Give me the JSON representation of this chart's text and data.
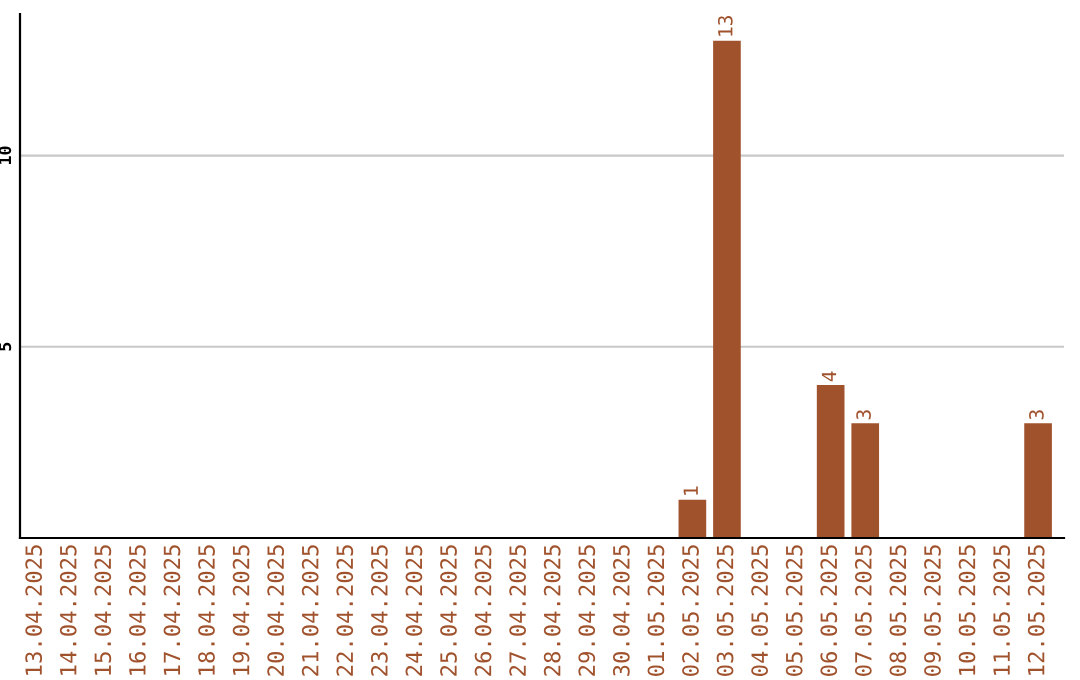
{
  "chart_data": {
    "type": "bar",
    "categories": [
      "13.04.2025",
      "14.04.2025",
      "15.04.2025",
      "16.04.2025",
      "17.04.2025",
      "18.04.2025",
      "19.04.2025",
      "20.04.2025",
      "21.04.2025",
      "22.04.2025",
      "23.04.2025",
      "24.04.2025",
      "25.04.2025",
      "26.04.2025",
      "27.04.2025",
      "28.04.2025",
      "29.04.2025",
      "30.04.2025",
      "01.05.2025",
      "02.05.2025",
      "03.05.2025",
      "04.05.2025",
      "05.05.2025",
      "06.05.2025",
      "07.05.2025",
      "08.05.2025",
      "09.05.2025",
      "10.05.2025",
      "11.05.2025",
      "12.05.2025"
    ],
    "values": [
      0,
      0,
      0,
      0,
      0,
      0,
      0,
      0,
      0,
      0,
      0,
      0,
      0,
      0,
      0,
      0,
      0,
      0,
      0,
      1,
      13,
      0,
      0,
      4,
      3,
      0,
      0,
      0,
      0,
      3
    ],
    "value_labels": [
      null,
      null,
      null,
      null,
      null,
      null,
      null,
      null,
      null,
      null,
      null,
      null,
      null,
      null,
      null,
      null,
      null,
      null,
      null,
      "1",
      "13",
      null,
      null,
      "4",
      "3",
      null,
      null,
      null,
      null,
      "3"
    ],
    "color": "#a0522d",
    "ylim": [
      0,
      13.7
    ],
    "yticks": [
      5,
      10
    ],
    "grid": "y",
    "legend": false
  }
}
